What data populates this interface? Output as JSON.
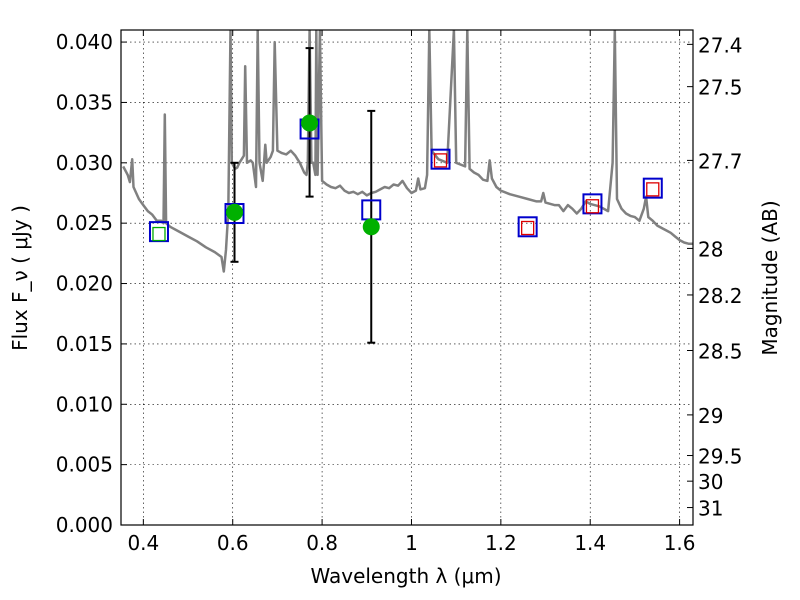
{
  "chart_data": {
    "type": "scatter",
    "xlabel": "Wavelength  λ (μm)",
    "ylabel": "Flux  F_ν  ( μJy )",
    "ylabel_right": "Magnitude (AB)",
    "xlim": [
      0.35,
      1.63
    ],
    "ylim": [
      0.0,
      0.041
    ],
    "grid": true,
    "x_ticks": [
      {
        "value": 0.4,
        "label": "0.4"
      },
      {
        "value": 0.6,
        "label": "0.6"
      },
      {
        "value": 0.8,
        "label": "0.8"
      },
      {
        "value": 1.0,
        "label": "1"
      },
      {
        "value": 1.2,
        "label": "1.2"
      },
      {
        "value": 1.4,
        "label": "1.4"
      },
      {
        "value": 1.6,
        "label": "1.6"
      }
    ],
    "y_ticks": [
      {
        "value": 0.0,
        "label": "0.000"
      },
      {
        "value": 0.005,
        "label": "0.005"
      },
      {
        "value": 0.01,
        "label": "0.010"
      },
      {
        "value": 0.015,
        "label": "0.015"
      },
      {
        "value": 0.02,
        "label": "0.020"
      },
      {
        "value": 0.025,
        "label": "0.025"
      },
      {
        "value": 0.03,
        "label": "0.030"
      },
      {
        "value": 0.035,
        "label": "0.035"
      },
      {
        "value": 0.04,
        "label": "0.040"
      }
    ],
    "right_ticks": [
      {
        "mag": 27.4,
        "label": "27.4"
      },
      {
        "mag": 27.5,
        "label": "27.5"
      },
      {
        "mag": 27.7,
        "label": "27.7"
      },
      {
        "mag": 28.0,
        "label": "28"
      },
      {
        "mag": 28.2,
        "label": "28.2"
      },
      {
        "mag": 28.5,
        "label": "28.5"
      },
      {
        "mag": 29.0,
        "label": "29"
      },
      {
        "mag": 29.5,
        "label": "29.5"
      },
      {
        "mag": 30.0,
        "label": "30"
      },
      {
        "mag": 31.0,
        "label": "31"
      }
    ],
    "spectrum": {
      "color": "#808080",
      "points": [
        [
          0.355,
          0.0297
        ],
        [
          0.365,
          0.029
        ],
        [
          0.37,
          0.0284
        ],
        [
          0.375,
          0.0303
        ],
        [
          0.378,
          0.028
        ],
        [
          0.39,
          0.027
        ],
        [
          0.4,
          0.0265
        ],
        [
          0.41,
          0.026
        ],
        [
          0.42,
          0.0257
        ],
        [
          0.43,
          0.0252
        ],
        [
          0.44,
          0.0252
        ],
        [
          0.445,
          0.025
        ],
        [
          0.448,
          0.034
        ],
        [
          0.451,
          0.025
        ],
        [
          0.46,
          0.0247
        ],
        [
          0.48,
          0.0243
        ],
        [
          0.5,
          0.0239
        ],
        [
          0.52,
          0.0235
        ],
        [
          0.54,
          0.023
        ],
        [
          0.56,
          0.0226
        ],
        [
          0.575,
          0.0222
        ],
        [
          0.58,
          0.021
        ],
        [
          0.585,
          0.0228
        ],
        [
          0.59,
          0.026
        ],
        [
          0.595,
          0.041
        ],
        [
          0.598,
          0.03
        ],
        [
          0.605,
          0.0295
        ],
        [
          0.61,
          0.0296
        ],
        [
          0.615,
          0.03
        ],
        [
          0.62,
          0.0303
        ],
        [
          0.625,
          0.0306
        ],
        [
          0.628,
          0.038
        ],
        [
          0.632,
          0.03
        ],
        [
          0.64,
          0.0302
        ],
        [
          0.645,
          0.03
        ],
        [
          0.652,
          0.028
        ],
        [
          0.656,
          0.041
        ],
        [
          0.66,
          0.03
        ],
        [
          0.667,
          0.0285
        ],
        [
          0.67,
          0.03
        ],
        [
          0.673,
          0.0315
        ],
        [
          0.676,
          0.03
        ],
        [
          0.685,
          0.0305
        ],
        [
          0.69,
          0.031
        ],
        [
          0.694,
          0.04
        ],
        [
          0.7,
          0.031
        ],
        [
          0.71,
          0.0308
        ],
        [
          0.72,
          0.0307
        ],
        [
          0.73,
          0.031
        ],
        [
          0.74,
          0.0306
        ],
        [
          0.745,
          0.0303
        ],
        [
          0.75,
          0.03
        ],
        [
          0.755,
          0.0296
        ],
        [
          0.76,
          0.0292
        ],
        [
          0.765,
          0.029
        ],
        [
          0.768,
          0.03
        ],
        [
          0.772,
          0.041
        ],
        [
          0.776,
          0.03
        ],
        [
          0.78,
          0.03
        ],
        [
          0.785,
          0.029
        ],
        [
          0.787,
          0.041
        ],
        [
          0.79,
          0.029
        ],
        [
          0.795,
          0.041
        ],
        [
          0.8,
          0.0285
        ],
        [
          0.81,
          0.0282
        ],
        [
          0.82,
          0.028
        ],
        [
          0.83,
          0.0279
        ],
        [
          0.84,
          0.0281
        ],
        [
          0.85,
          0.0277
        ],
        [
          0.86,
          0.0275
        ],
        [
          0.87,
          0.0276
        ],
        [
          0.88,
          0.0274
        ],
        [
          0.89,
          0.0276
        ],
        [
          0.9,
          0.0273
        ],
        [
          0.91,
          0.0275
        ],
        [
          0.92,
          0.0276
        ],
        [
          0.93,
          0.0278
        ],
        [
          0.94,
          0.028
        ],
        [
          0.95,
          0.0279
        ],
        [
          0.96,
          0.0282
        ],
        [
          0.97,
          0.0281
        ],
        [
          0.98,
          0.0285
        ],
        [
          0.99,
          0.0279
        ],
        [
          1.0,
          0.0275
        ],
        [
          1.01,
          0.0277
        ],
        [
          1.015,
          0.0287
        ],
        [
          1.02,
          0.0278
        ],
        [
          1.03,
          0.0279
        ],
        [
          1.035,
          0.029
        ],
        [
          1.04,
          0.041
        ],
        [
          1.045,
          0.031
        ],
        [
          1.06,
          0.0303
        ],
        [
          1.08,
          0.03
        ],
        [
          1.095,
          0.041
        ],
        [
          1.1,
          0.03
        ],
        [
          1.12,
          0.0297
        ],
        [
          1.125,
          0.041
        ],
        [
          1.13,
          0.0295
        ],
        [
          1.14,
          0.0292
        ],
        [
          1.15,
          0.029
        ],
        [
          1.16,
          0.0286
        ],
        [
          1.17,
          0.0285
        ],
        [
          1.175,
          0.0302
        ],
        [
          1.18,
          0.0287
        ],
        [
          1.19,
          0.028
        ],
        [
          1.2,
          0.0277
        ],
        [
          1.22,
          0.0274
        ],
        [
          1.24,
          0.0272
        ],
        [
          1.26,
          0.027
        ],
        [
          1.28,
          0.0268
        ],
        [
          1.29,
          0.0268
        ],
        [
          1.295,
          0.0275
        ],
        [
          1.3,
          0.0267
        ],
        [
          1.32,
          0.0265
        ],
        [
          1.33,
          0.0265
        ],
        [
          1.34,
          0.026
        ],
        [
          1.35,
          0.0265
        ],
        [
          1.36,
          0.0262
        ],
        [
          1.37,
          0.0258
        ],
        [
          1.38,
          0.0262
        ],
        [
          1.39,
          0.0268
        ],
        [
          1.4,
          0.0266
        ],
        [
          1.42,
          0.0264
        ],
        [
          1.44,
          0.026
        ],
        [
          1.45,
          0.03
        ],
        [
          1.455,
          0.041
        ],
        [
          1.46,
          0.027
        ],
        [
          1.47,
          0.0262
        ],
        [
          1.48,
          0.0258
        ],
        [
          1.49,
          0.0256
        ],
        [
          1.5,
          0.0255
        ],
        [
          1.51,
          0.0252
        ],
        [
          1.52,
          0.0262
        ],
        [
          1.525,
          0.0272
        ],
        [
          1.53,
          0.0255
        ],
        [
          1.54,
          0.0252
        ],
        [
          1.55,
          0.0248
        ],
        [
          1.56,
          0.0246
        ],
        [
          1.57,
          0.0244
        ],
        [
          1.58,
          0.0242
        ],
        [
          1.59,
          0.0239
        ],
        [
          1.6,
          0.0236
        ],
        [
          1.61,
          0.0234
        ],
        [
          1.62,
          0.0233
        ],
        [
          1.63,
          0.0233
        ]
      ]
    },
    "observed_points": {
      "color": "#00b000",
      "points": [
        {
          "x": 0.604,
          "y": 0.0259,
          "yerr_low": 0.0218,
          "yerr_high": 0.03
        },
        {
          "x": 0.772,
          "y": 0.0333,
          "yerr_low": 0.0272,
          "yerr_high": 0.0395
        },
        {
          "x": 0.91,
          "y": 0.0247,
          "yerr_low": 0.0151,
          "yerr_high": 0.0343
        }
      ]
    },
    "model_squares": {
      "color": "#0000cc",
      "points": [
        {
          "x": 0.435,
          "y": 0.0243
        },
        {
          "x": 0.604,
          "y": 0.0258
        },
        {
          "x": 0.772,
          "y": 0.0328
        },
        {
          "x": 0.91,
          "y": 0.0261
        },
        {
          "x": 1.065,
          "y": 0.0303
        },
        {
          "x": 1.26,
          "y": 0.0247
        },
        {
          "x": 1.405,
          "y": 0.0266
        },
        {
          "x": 1.54,
          "y": 0.0279
        }
      ]
    },
    "inner_squares": {
      "points": [
        {
          "x": 0.435,
          "y": 0.0241,
          "color": "#00aa00"
        },
        {
          "x": 1.065,
          "y": 0.0302,
          "color": "#dd0000"
        },
        {
          "x": 1.26,
          "y": 0.0246,
          "color": "#dd0000"
        },
        {
          "x": 1.405,
          "y": 0.0264,
          "color": "#dd0000"
        },
        {
          "x": 1.54,
          "y": 0.0278,
          "color": "#dd0000"
        }
      ]
    }
  }
}
